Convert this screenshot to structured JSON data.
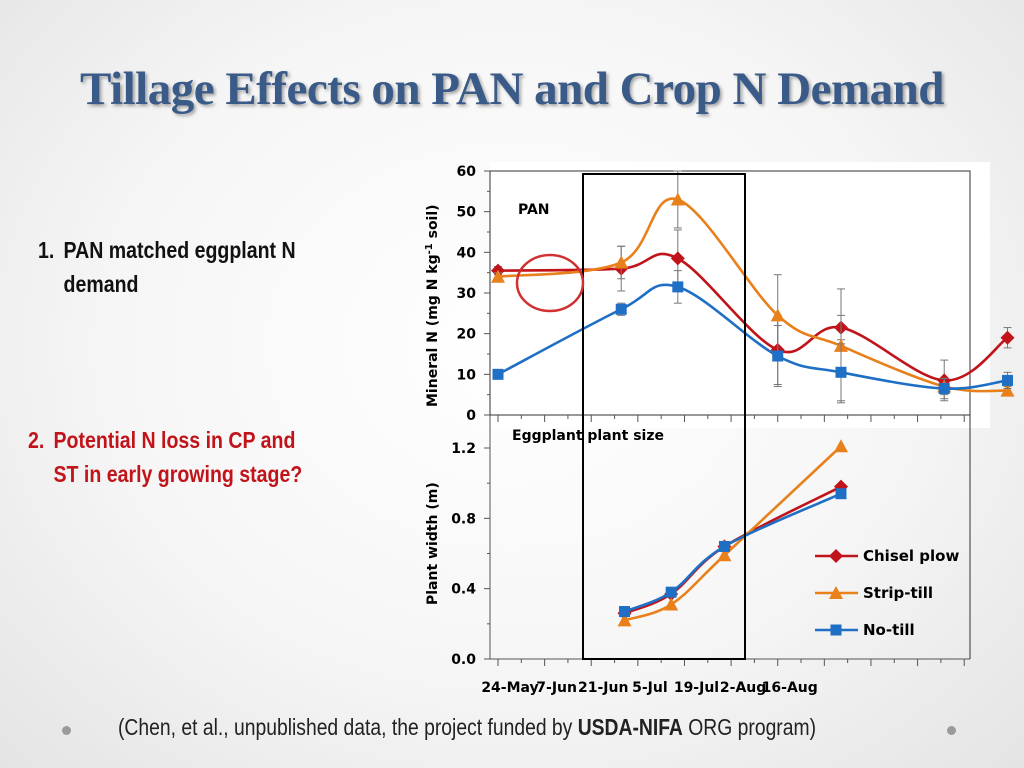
{
  "slide": {
    "title": "Tillage Effects on PAN and Crop N Demand",
    "bullet1": {
      "num": "1.",
      "line1": "PAN matched eggplant N",
      "line2": "demand"
    },
    "bullet2": {
      "num": "2.",
      "line1": "Potential N loss in CP and",
      "line2": "ST in early growing stage?"
    },
    "footer": {
      "pre": "(Chen, et al., unpublished data, the project funded by ",
      "bold": "USDA-NIFA",
      "post": " ORG program)"
    }
  },
  "colors": {
    "chisel": "#c0141a",
    "strip": "#e8801c",
    "notill": "#1f6fc5",
    "title": "#3a5a88",
    "highlight": "#d03030"
  },
  "chart_data": [
    {
      "type": "line",
      "title": "PAN",
      "ylabel_main": "Mineral N (mg N kg",
      "ylabel_sup": "-1",
      "ylabel_end": " soil)",
      "ylim": [
        0,
        60
      ],
      "yticks": [
        0,
        10,
        20,
        30,
        40,
        50,
        60
      ],
      "x_unit": "days after 24-May",
      "series": [
        {
          "name": "Chisel plow",
          "marker": "diamond",
          "x": [
            0,
            37,
            54,
            84,
            103,
            134,
            153
          ],
          "y": [
            35.5,
            36,
            38.5,
            16,
            21.5,
            8.5,
            19
          ],
          "err": [
            1,
            5.5,
            7,
            8.5,
            3,
            5,
            2.5
          ]
        },
        {
          "name": "Strip-till",
          "marker": "triangle",
          "x": [
            0,
            37,
            54,
            84,
            103,
            134,
            153
          ],
          "y": [
            34,
            37.5,
            53,
            24.5,
            17,
            7,
            6
          ],
          "err": [
            1,
            4,
            7,
            10,
            14,
            2,
            1
          ]
        },
        {
          "name": "No-till",
          "marker": "square",
          "x": [
            0,
            37,
            54,
            84,
            103,
            134,
            153
          ],
          "y": [
            10,
            26,
            31.5,
            14.5,
            10.5,
            6.5,
            8.5
          ],
          "err": [
            0.8,
            1.5,
            4,
            7.5,
            7,
            2.5,
            2
          ]
        }
      ]
    },
    {
      "type": "line",
      "title": "Eggplant plant size",
      "ylabel": "Plant width (m)",
      "ylim": [
        0,
        1.4
      ],
      "yticks": [
        "0.0",
        "0.4",
        "0.8",
        "1.2"
      ],
      "x_unit": "days after 24-May",
      "xticks": [
        "24-May",
        "7-Jun",
        "21-Jun",
        "5-Jul",
        "19-Jul",
        "2-Aug",
        "16-Aug"
      ],
      "series": [
        {
          "name": "Chisel plow",
          "marker": "diamond",
          "x": [
            38,
            52,
            68,
            103
          ],
          "y": [
            0.26,
            0.37,
            0.64,
            0.98
          ]
        },
        {
          "name": "Strip-till",
          "marker": "triangle",
          "x": [
            38,
            52,
            68,
            103
          ],
          "y": [
            0.22,
            0.31,
            0.59,
            1.21
          ]
        },
        {
          "name": "No-till",
          "marker": "square",
          "x": [
            38,
            52,
            68,
            103
          ],
          "y": [
            0.27,
            0.38,
            0.64,
            0.94
          ]
        }
      ],
      "legend": [
        "Chisel plow",
        "Strip-till",
        "No-till"
      ]
    }
  ]
}
